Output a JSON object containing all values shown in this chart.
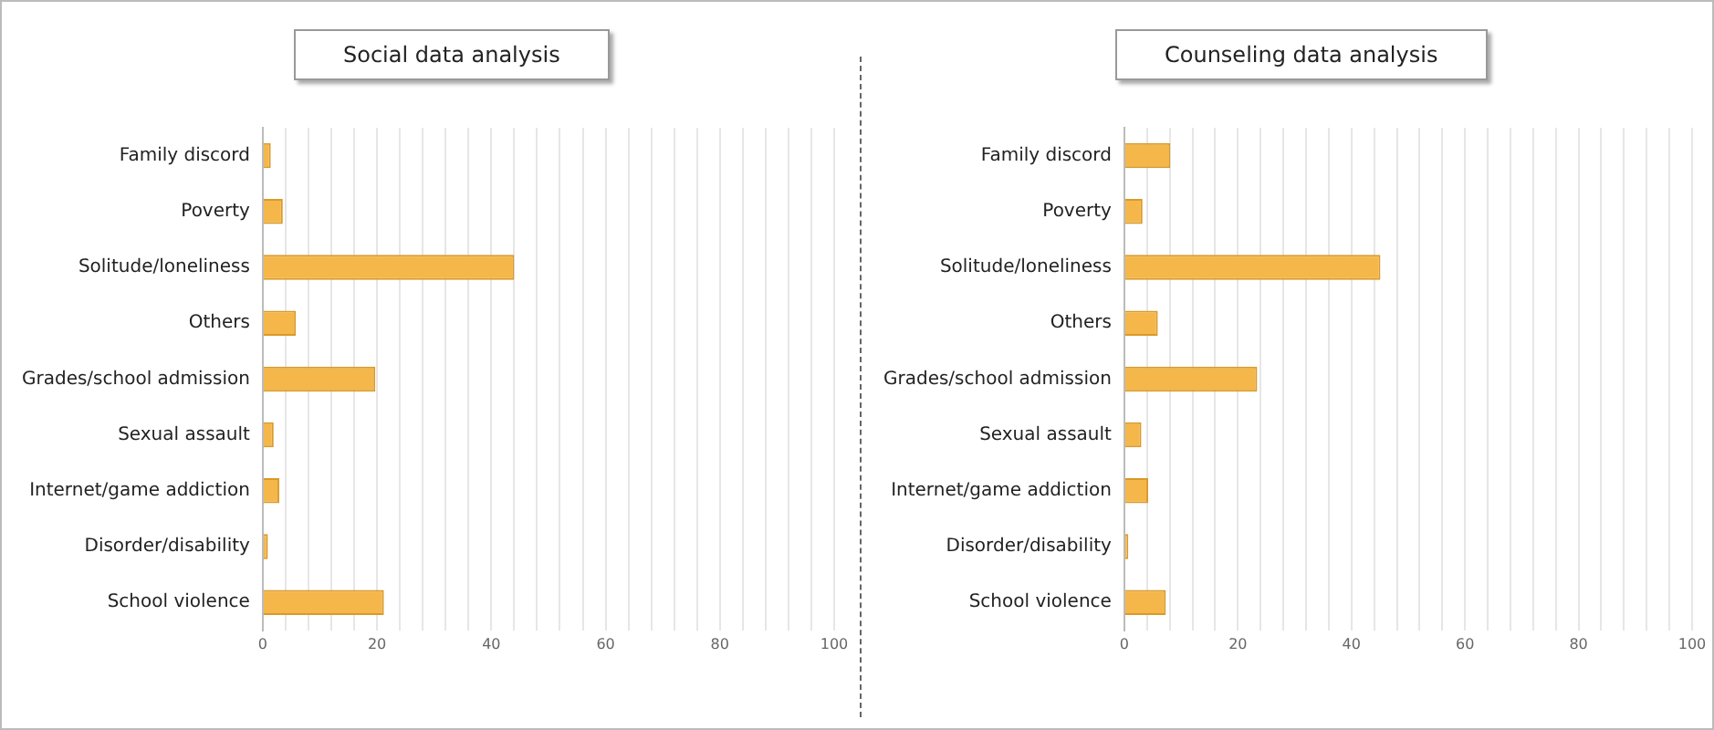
{
  "chart_data": [
    {
      "type": "bar",
      "orientation": "horizontal",
      "title": "Social data analysis",
      "categories": [
        "Family discord",
        "Poverty",
        "Solitude/loneliness",
        "Others",
        "Grades/school admission",
        "Sexual assault",
        "Internet/game addiction",
        "Disorder/disability",
        "School violence"
      ],
      "values": [
        1.4,
        3.5,
        44,
        5.8,
        19.7,
        1.9,
        2.9,
        0.9,
        21.2
      ],
      "color": "#f5b74a",
      "xlim": [
        0,
        100
      ],
      "xticks": [
        0,
        {
          "value": 4,
          "label": null
        },
        {
          "value": 8,
          "label": null
        },
        {
          "value": 12,
          "label": null
        },
        {
          "value": 16,
          "label": null
        },
        20,
        {
          "value": 24,
          "label": null
        },
        {
          "value": 28,
          "label": null
        },
        {
          "value": 32,
          "label": null
        },
        {
          "value": 36,
          "label": null
        },
        40,
        {
          "value": 44,
          "label": null
        },
        {
          "value": 48,
          "label": null
        },
        {
          "value": 52,
          "label": null
        },
        {
          "value": 56,
          "label": null
        },
        60,
        {
          "value": 64,
          "label": null
        },
        {
          "value": 68,
          "label": null
        },
        {
          "value": 72,
          "label": null
        },
        {
          "value": 76,
          "label": null
        },
        80,
        {
          "value": 84,
          "label": null
        },
        {
          "value": 88,
          "label": null
        },
        {
          "value": 92,
          "label": null
        },
        {
          "value": 96,
          "label": null
        },
        100
      ],
      "grid": "x",
      "legend": false
    },
    {
      "type": "bar",
      "orientation": "horizontal",
      "title": "Counseling data analysis",
      "categories": [
        "Family discord",
        "Poverty",
        "Solitude/loneliness",
        "Others",
        "Grades/school admission",
        "Sexual assault",
        "Internet/game addiction",
        "Disorder/disability",
        "School violence"
      ],
      "values": [
        8.1,
        3.2,
        45.1,
        5.9,
        23.4,
        3.0,
        4.2,
        0.7,
        7.3
      ],
      "color": "#f5b74a",
      "xlim": [
        0,
        100
      ],
      "xticks": [
        0,
        {
          "value": 4,
          "label": null
        },
        {
          "value": 8,
          "label": null
        },
        {
          "value": 12,
          "label": null
        },
        {
          "value": 16,
          "label": null
        },
        20,
        {
          "value": 24,
          "label": null
        },
        {
          "value": 28,
          "label": null
        },
        {
          "value": 32,
          "label": null
        },
        {
          "value": 36,
          "label": null
        },
        40,
        {
          "value": 44,
          "label": null
        },
        {
          "value": 48,
          "label": null
        },
        {
          "value": 52,
          "label": null
        },
        {
          "value": 56,
          "label": null
        },
        60,
        {
          "value": 64,
          "label": null
        },
        {
          "value": 68,
          "label": null
        },
        {
          "value": 72,
          "label": null
        },
        {
          "value": 76,
          "label": null
        },
        80,
        {
          "value": 84,
          "label": null
        },
        {
          "value": 88,
          "label": null
        },
        {
          "value": 92,
          "label": null
        },
        {
          "value": 96,
          "label": null
        },
        100
      ],
      "grid": "x",
      "legend": false
    }
  ]
}
